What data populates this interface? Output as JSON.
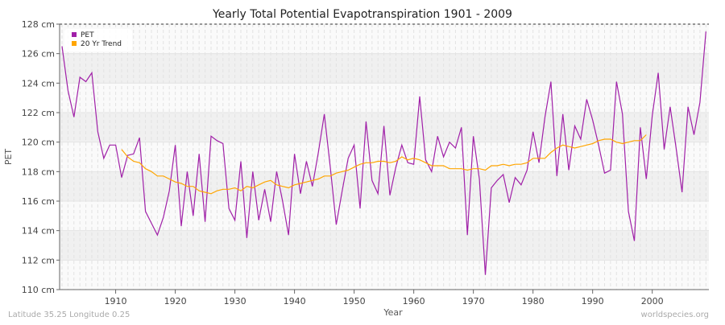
{
  "chart_data": {
    "type": "line",
    "title": "Yearly Total Potential Evapotranspiration 1901 - 2009",
    "xlabel": "Year",
    "ylabel": "PET",
    "xlim": [
      1901,
      2009
    ],
    "ylim": [
      110,
      128
    ],
    "y_unit": "cm",
    "x_ticks": [
      1910,
      1920,
      1930,
      1940,
      1950,
      1960,
      1970,
      1980,
      1990,
      2000
    ],
    "y_ticks": [
      110,
      112,
      114,
      116,
      118,
      120,
      122,
      124,
      126,
      128
    ],
    "y_tick_labels": [
      "110 cm",
      "112 cm",
      "114 cm",
      "116 cm",
      "118 cm",
      "120 cm",
      "122 cm",
      "124 cm",
      "126 cm",
      "128 cm"
    ],
    "grid": true,
    "legend_placement": "top-left",
    "series": [
      {
        "name": "PET",
        "color": "#a020a8",
        "x_start": 1901,
        "values": [
          126.5,
          123.5,
          121.7,
          124.4,
          124.1,
          124.7,
          120.7,
          118.9,
          119.8,
          119.8,
          117.6,
          119.1,
          119.2,
          120.3,
          115.3,
          114.5,
          113.7,
          114.9,
          116.7,
          119.8,
          114.3,
          118.0,
          115.0,
          119.2,
          114.6,
          120.4,
          120.1,
          119.9,
          115.5,
          114.7,
          118.7,
          113.5,
          118.0,
          114.7,
          116.8,
          114.6,
          118.0,
          116.0,
          113.7,
          119.2,
          116.5,
          118.7,
          117.0,
          119.3,
          121.9,
          118.3,
          114.4,
          116.7,
          118.9,
          119.8,
          115.5,
          121.4,
          117.4,
          116.5,
          121.1,
          116.4,
          118.3,
          119.8,
          118.6,
          118.5,
          123.1,
          118.8,
          118.0,
          120.4,
          119.0,
          120.0,
          119.6,
          121.0,
          113.7,
          120.4,
          117.5,
          111.0,
          116.9,
          117.4,
          117.8,
          115.9,
          117.6,
          117.1,
          118.1,
          120.7,
          118.6,
          121.7,
          124.1,
          117.7,
          121.9,
          118.1,
          121.1,
          120.2,
          122.9,
          121.5,
          119.8,
          117.9,
          118.1,
          124.1,
          121.9,
          115.3,
          113.3,
          121.0,
          117.5,
          121.8,
          124.7,
          119.5,
          122.4,
          119.6,
          116.6,
          122.4,
          120.5,
          122.7,
          127.5
        ]
      },
      {
        "name": "20 Yr Trend",
        "color": "#ffa500",
        "x_start": 1911,
        "values": [
          119.5,
          119.0,
          118.7,
          118.6,
          118.2,
          118.0,
          117.7,
          117.7,
          117.5,
          117.3,
          117.2,
          117.0,
          117.0,
          116.7,
          116.6,
          116.5,
          116.7,
          116.8,
          116.8,
          116.9,
          116.7,
          117.0,
          116.9,
          117.1,
          117.3,
          117.4,
          117.1,
          117.0,
          116.9,
          117.1,
          117.2,
          117.3,
          117.4,
          117.5,
          117.7,
          117.7,
          117.9,
          118.0,
          118.1,
          118.3,
          118.5,
          118.6,
          118.6,
          118.7,
          118.7,
          118.6,
          118.7,
          119.0,
          118.8,
          118.9,
          118.8,
          118.6,
          118.4,
          118.4,
          118.4,
          118.2,
          118.2,
          118.2,
          118.1,
          118.2,
          118.2,
          118.1,
          118.4,
          118.4,
          118.5,
          118.4,
          118.5,
          118.5,
          118.6,
          118.9,
          118.9,
          118.9,
          119.3,
          119.6,
          119.8,
          119.7,
          119.6,
          119.7,
          119.8,
          119.9,
          120.1,
          120.2,
          120.2,
          120.0,
          119.9,
          120.0,
          120.1,
          120.1,
          120.5
        ]
      }
    ]
  },
  "footer": {
    "location": "Latitude 35.25 Longitude 0.25",
    "source": "worldspecies.org"
  }
}
